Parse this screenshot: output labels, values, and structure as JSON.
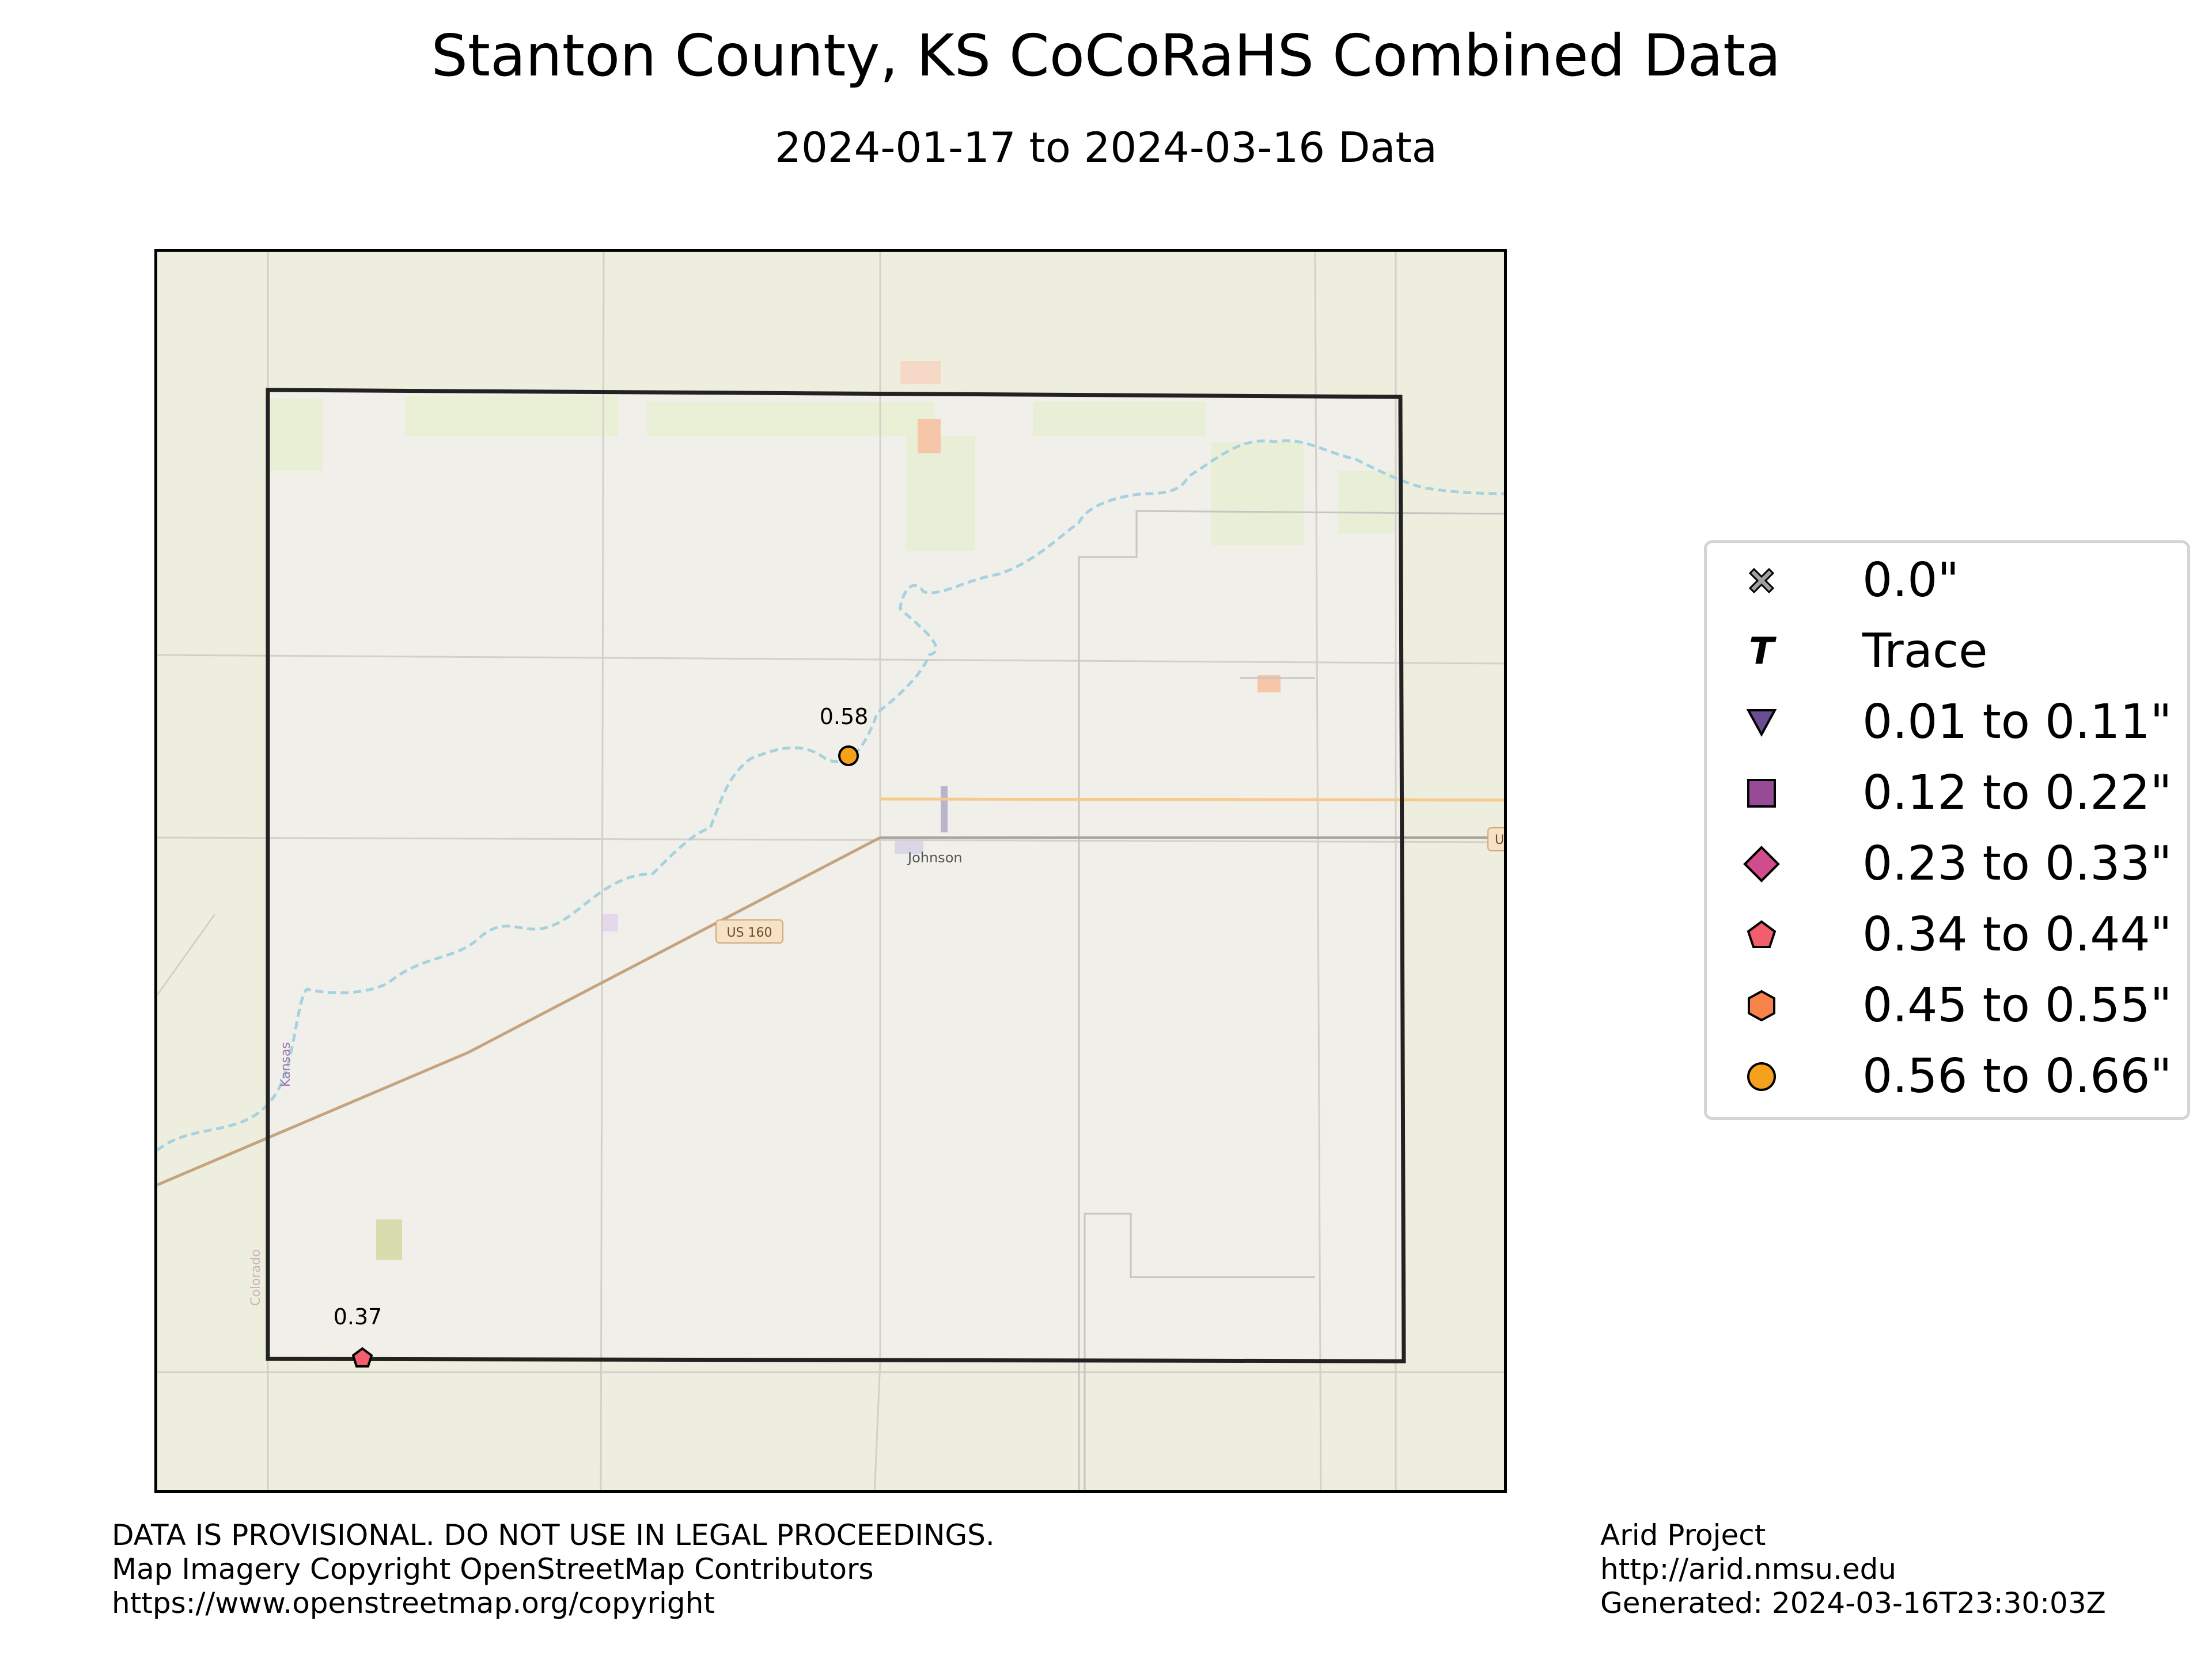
{
  "title": "Stanton County, KS CoCoRaHS Combined Data",
  "subtitle": "2024-01-17 to 2024-03-16 Data",
  "map": {
    "places": {
      "town": "Johnson",
      "road": "US 160",
      "state_label": "Kansas",
      "state_label_2": "Colorado",
      "edge_shield": "U"
    },
    "stations": [
      {
        "value": "0.58",
        "symbol": "circle",
        "color": "#f5a11c"
      },
      {
        "value": "0.37",
        "symbol": "pentagon",
        "color": "#f25e6b"
      }
    ]
  },
  "legend": {
    "items": [
      {
        "label": "0.0\"",
        "symbol": "x",
        "color": "#a0a0a0"
      },
      {
        "label": "Trace",
        "symbol": "T",
        "color": "#000000"
      },
      {
        "label": "0.01 to 0.11\"",
        "symbol": "triangle-down",
        "color": "#6a4c93"
      },
      {
        "label": "0.12 to 0.22\"",
        "symbol": "square",
        "color": "#974b96"
      },
      {
        "label": "0.23 to 0.33\"",
        "symbol": "diamond",
        "color": "#d14c8b"
      },
      {
        "label": "0.34 to 0.44\"",
        "symbol": "pentagon",
        "color": "#f25e6b"
      },
      {
        "label": "0.45 to 0.55\"",
        "symbol": "hexagon",
        "color": "#f7824a"
      },
      {
        "label": "0.56 to 0.66\"",
        "symbol": "circle",
        "color": "#f5a11c"
      }
    ]
  },
  "footer": {
    "left": [
      "DATA IS PROVISIONAL. DO NOT USE IN LEGAL PROCEEDINGS.",
      "Map Imagery Copyright OpenStreetMap Contributors",
      "https://www.openstreetmap.org/copyright"
    ],
    "right": [
      "Arid Project",
      "http://arid.nmsu.edu",
      "Generated: 2024-03-16T23:30:03Z"
    ]
  }
}
